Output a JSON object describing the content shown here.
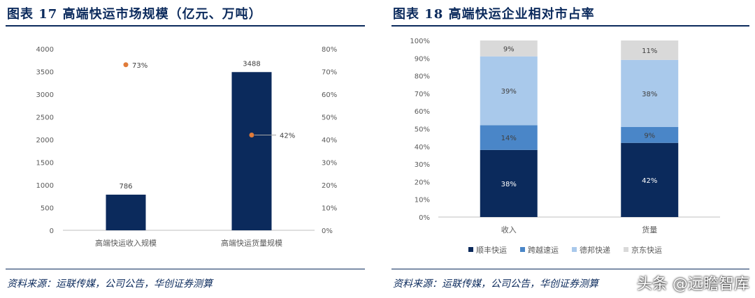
{
  "left": {
    "title": "图表 17   高端快运市场规模（亿元、万吨）",
    "source": "资料来源：运联传媒，公司公告，华创证券测算"
  },
  "right": {
    "title": "图表 18   高端快运企业相对市占率",
    "source": "资料来源：运联传媒，公司公告，华创证券测算"
  },
  "watermark": "头条 @远瞻智库",
  "chart_data": [
    {
      "type": "bar",
      "categories": [
        "高端快运收入规模",
        "高端快运货量规模"
      ],
      "series": [
        {
          "values": [
            786,
            3488
          ],
          "color": "#0b2a5c"
        },
        {
          "type": "scatter",
          "values": [
            0.73,
            0.42
          ],
          "labels": [
            "73%",
            "42%"
          ],
          "color": "#e07b39"
        }
      ],
      "ylim": [
        0,
        4000
      ],
      "yticks": [
        "0",
        "500",
        "1000",
        "1500",
        "2000",
        "2500",
        "3000",
        "3500",
        "4000"
      ],
      "y2lim": [
        0,
        0.8
      ],
      "y2ticks": [
        "0%",
        "10%",
        "20%",
        "30%",
        "40%",
        "50%",
        "60%",
        "70%",
        "80%"
      ],
      "grid": false,
      "legend": "none"
    },
    {
      "type": "bar",
      "stacked": true,
      "categories": [
        "收入",
        "货量"
      ],
      "series": [
        {
          "name": "顺丰快运",
          "values": [
            0.38,
            0.42
          ],
          "labels": [
            "38%",
            "42%"
          ],
          "color": "#0b2a5c"
        },
        {
          "name": "跨越速运",
          "values": [
            0.14,
            0.09
          ],
          "labels": [
            "14%",
            "9%"
          ],
          "color": "#4a86c8"
        },
        {
          "name": "德邦快递",
          "values": [
            0.39,
            0.38
          ],
          "labels": [
            "39%",
            "38%"
          ],
          "color": "#a9c9eb"
        },
        {
          "name": "京东快运",
          "values": [
            0.09,
            0.11
          ],
          "labels": [
            "9%",
            "11%"
          ],
          "color": "#d9d9d9"
        }
      ],
      "ylim": [
        0,
        1
      ],
      "yticks": [
        "0%",
        "10%",
        "20%",
        "30%",
        "40%",
        "50%",
        "60%",
        "70%",
        "80%",
        "90%",
        "100%"
      ],
      "grid": false,
      "legend": "bottom"
    }
  ]
}
